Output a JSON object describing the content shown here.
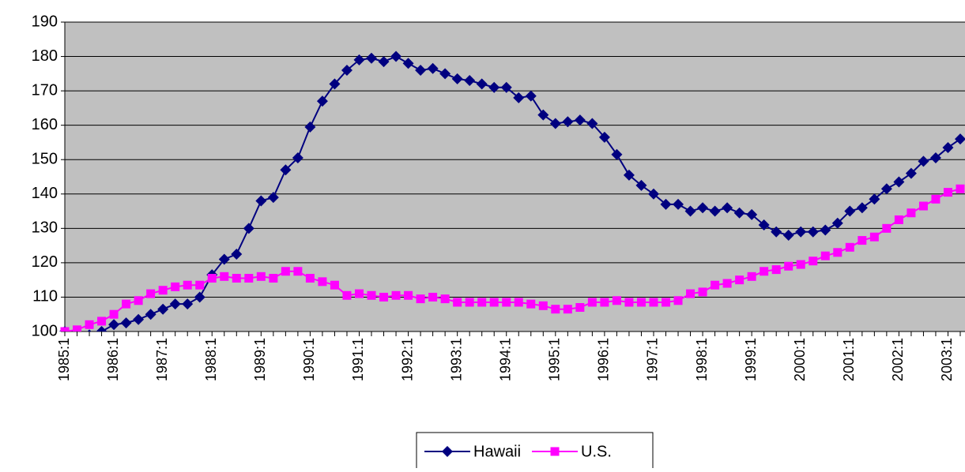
{
  "chart_data": {
    "type": "line",
    "categories": [
      "1985:1",
      null,
      null,
      null,
      "1986:1",
      null,
      null,
      null,
      "1987:1",
      null,
      null,
      null,
      "1988:1",
      null,
      null,
      null,
      "1989:1",
      null,
      null,
      null,
      "1990:1",
      null,
      null,
      null,
      "1991:1",
      null,
      null,
      null,
      "1992:1",
      null,
      null,
      null,
      "1993:1",
      null,
      null,
      null,
      "1994:1",
      null,
      null,
      null,
      "1995:1",
      null,
      null,
      null,
      "1996:1",
      null,
      null,
      null,
      "1997:1",
      null,
      null,
      null,
      "1998:1",
      null,
      null,
      null,
      "1999:1",
      null,
      null,
      null,
      "2000:1",
      null,
      null,
      null,
      "2001:1",
      null,
      null,
      null,
      "2002:1",
      null,
      null,
      null,
      "2003:1",
      null
    ],
    "series": [
      {
        "name": "Hawaii",
        "color": "#000080",
        "marker": "diamond",
        "values": [
          100,
          98,
          99,
          100,
          102,
          102.5,
          103.5,
          105,
          106.5,
          108,
          108,
          110,
          116.5,
          121,
          122.5,
          130,
          138,
          139,
          147,
          150.5,
          159.5,
          167,
          172,
          176,
          179,
          179.5,
          178.5,
          180,
          178,
          176,
          176.5,
          175,
          173.5,
          173,
          172,
          171,
          171,
          168,
          168.5,
          163,
          160.5,
          161,
          161.5,
          160.5,
          156.5,
          151.5,
          145.5,
          142.5,
          140,
          137,
          137,
          135,
          136,
          135,
          136,
          134.5,
          134,
          131,
          129,
          128,
          129,
          129,
          129.5,
          131.5,
          135,
          136,
          138.5,
          141.5,
          143.5,
          146,
          149.5,
          150.5,
          153.5,
          156
        ]
      },
      {
        "name": "U.S.",
        "color": "#ff00ff",
        "marker": "square",
        "values": [
          100,
          100.5,
          102,
          103,
          105,
          108,
          109,
          111,
          112,
          113,
          113.5,
          113.5,
          115.5,
          116,
          115.5,
          115.5,
          116,
          115.5,
          117.5,
          117.5,
          115.5,
          114.5,
          113.5,
          110.5,
          111,
          110.5,
          110,
          110.5,
          110.5,
          109.5,
          110,
          109.5,
          108.5,
          108.5,
          108.5,
          108.5,
          108.5,
          108.5,
          108,
          107.5,
          106.5,
          106.5,
          107,
          108.5,
          108.5,
          109,
          108.5,
          108.5,
          108.5,
          108.5,
          109,
          111,
          111.5,
          113.5,
          114,
          115,
          116,
          117.5,
          118,
          119,
          119.5,
          120.5,
          122,
          123,
          124.5,
          126.5,
          127.5,
          130,
          132.5,
          134.5,
          136.5,
          138.5,
          140.5,
          141.5
        ]
      }
    ],
    "ylim": [
      100,
      190
    ],
    "yticks": [
      100,
      110,
      120,
      130,
      140,
      150,
      160,
      170,
      180,
      190
    ],
    "grid": true,
    "plot_background": "#c0c0c0",
    "legend": "bottom"
  }
}
